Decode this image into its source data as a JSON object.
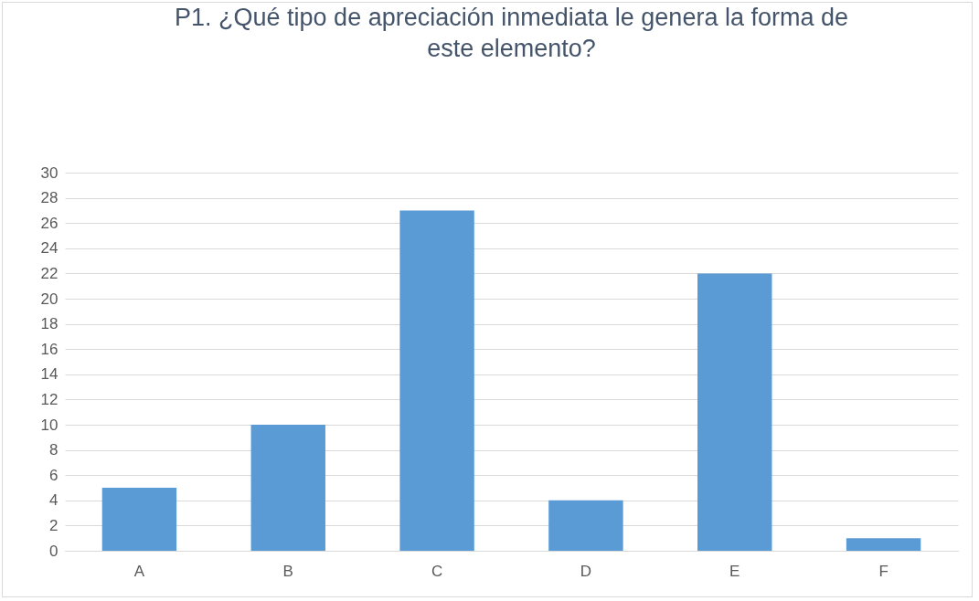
{
  "chart_data": {
    "type": "bar",
    "title": "P1. ¿Qué tipo de apreciación inmediata le genera la forma de este elemento?",
    "categories": [
      "A",
      "B",
      "C",
      "D",
      "E",
      "F"
    ],
    "values": [
      5,
      10,
      27,
      4,
      22,
      1
    ],
    "color": "#5b9bd5",
    "ylim": [
      0,
      30
    ],
    "yticks": [
      0,
      2,
      4,
      6,
      8,
      10,
      12,
      14,
      16,
      18,
      20,
      22,
      24,
      26,
      28,
      30
    ],
    "grid": "y"
  }
}
